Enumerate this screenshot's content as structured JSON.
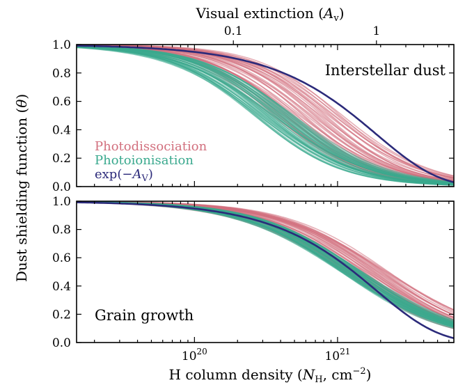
{
  "chart_data": {
    "type": "line",
    "xscale": "log",
    "xlim": [
      1.5e+19,
      6.5e+21
    ],
    "xlabel": "H column density (N_H, cm^-2)",
    "xtick_labels": [
      {
        "value": 1e+20,
        "label": "10^20"
      },
      {
        "value": 1e+21,
        "label": "10^21"
      }
    ],
    "top_axis": {
      "label": "Visual extinction (A_v)",
      "ticks": [
        {
          "value": 0.1,
          "label": "0.1"
        },
        {
          "value": 1,
          "label": "1"
        }
      ],
      "nh_per_av": 1.87e+21
    },
    "ylabel": "Dust shielding function (θ)",
    "ylim": [
      0.0,
      1.0
    ],
    "ytick_labels": [
      "0.0",
      "0.2",
      "0.4",
      "0.6",
      "0.8",
      "1.0"
    ],
    "legend": {
      "placement": "lower-left",
      "entries": [
        {
          "label": "Photodissociation",
          "color": "#d2707e"
        },
        {
          "label": "Photoionisation",
          "color": "#3aa98e"
        },
        {
          "label": "exp(−A_V)",
          "color": "#2b2a7a"
        }
      ]
    },
    "panels": [
      {
        "label": "Interstellar dust",
        "label_placement": "top-right",
        "series": [
          {
            "group": "Photodissociation",
            "color": "#d2707e",
            "curves": 40,
            "n_half_range": [
              3.5e+20,
              1.1e+21
            ],
            "slope_range": [
              1.3,
              1.55
            ]
          },
          {
            "group": "Photoionisation",
            "color": "#3aa98e",
            "curves": 40,
            "n_half_range": [
              2.6e+20,
              5e+20
            ],
            "slope_range": [
              1.28,
              1.45
            ]
          },
          {
            "group": "exp(−A_V)",
            "color": "#2b2a7a",
            "function": "exp(-N_H/1.87e21)"
          }
        ]
      },
      {
        "label": "Grain growth",
        "label_placement": "lower-left",
        "series": [
          {
            "group": "Photodissociation",
            "color": "#d2707e",
            "curves": 40,
            "n_half_range": [
              1.1e+21,
              2.3e+21
            ],
            "slope_range": [
              1.1,
              1.3
            ]
          },
          {
            "group": "Photoionisation",
            "color": "#3aa98e",
            "curves": 40,
            "n_half_range": [
              1.05e+21,
              1.5e+21
            ],
            "slope_range": [
              1.12,
              1.25
            ]
          },
          {
            "group": "exp(−A_V)",
            "color": "#2b2a7a",
            "function": "exp(-N_H/1.87e21)"
          }
        ]
      }
    ]
  }
}
